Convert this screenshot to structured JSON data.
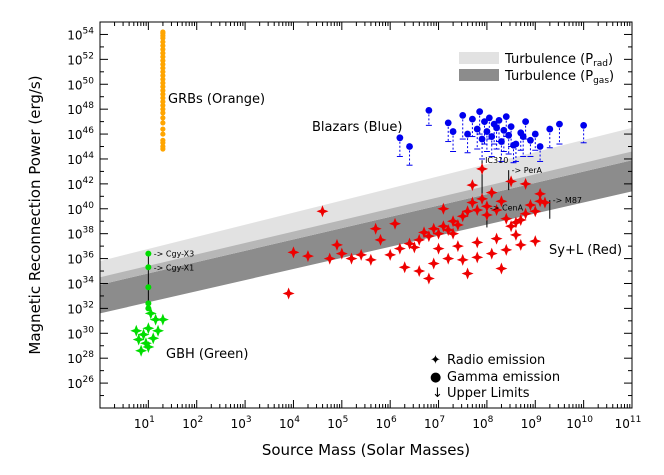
{
  "chart_data": {
    "type": "scatter",
    "xlabel": "Source Mass (Solar Masses)",
    "ylabel": "Magnetic Reconnection Power (erg/s)",
    "xscale": "log",
    "yscale": "log",
    "xlim_exp": [
      0,
      11
    ],
    "ylim_exp": [
      24,
      55
    ],
    "x_tick_exponents": [
      1,
      2,
      3,
      4,
      5,
      6,
      7,
      8,
      9,
      10,
      11
    ],
    "y_tick_exponents": [
      26,
      28,
      30,
      32,
      34,
      36,
      38,
      40,
      42,
      44,
      46,
      48,
      50,
      52,
      54
    ],
    "tick_base": "10",
    "bands": [
      {
        "name": "Turbulence (P_rad)",
        "label_main": "Turbulence (P",
        "label_sub": "rad",
        "label_close": ")",
        "color": "#e2e2e2",
        "log_lower_at_x0": 34.5,
        "log_lower_at_x11": 43.9,
        "log_upper_at_x0": 35.8,
        "log_upper_at_x11": 46.5
      },
      {
        "name": "Turbulence (P_gas)",
        "label_main": "Turbulence (P",
        "label_sub": "gas",
        "label_close": ")",
        "color": "#8c8c8c",
        "log_lower_at_x0": 31.6,
        "log_lower_at_x11": 41.4,
        "log_upper_at_x0": 33.9,
        "log_upper_at_x11": 43.9
      },
      {
        "name": "overlap",
        "color": "#b7b7b7",
        "log_lower_at_x0": 33.9,
        "log_lower_at_x11": 43.9,
        "log_upper_at_x0": 34.5,
        "log_upper_at_x11": 44.6
      }
    ],
    "series": [
      {
        "name": "GRBs",
        "color": "#ffa500",
        "marker": "circle",
        "log_mass": [
          1.3,
          1.3,
          1.3,
          1.3,
          1.3,
          1.3,
          1.3,
          1.3,
          1.3,
          1.3,
          1.3,
          1.3,
          1.3,
          1.3,
          1.3,
          1.3,
          1.3,
          1.3,
          1.3,
          1.3,
          1.3,
          1.3,
          1.3,
          1.3,
          1.3,
          1.3,
          1.3,
          1.3,
          1.3,
          1.3,
          1.3,
          1.3
        ],
        "log_power": [
          45.0,
          45.5,
          46.0,
          46.4,
          46.9,
          47.3,
          47.7,
          48.0,
          48.3,
          48.6,
          48.9,
          49.2,
          49.5,
          49.8,
          50.1,
          50.4,
          50.7,
          51.0,
          51.3,
          51.6,
          51.9,
          52.2,
          52.5,
          52.8,
          53.1,
          53.4,
          53.7,
          53.9,
          54.1,
          54.2,
          44.8,
          45.3
        ]
      },
      {
        "name": "Blazars",
        "color": "#0000ee",
        "marker": "circle",
        "log_mass": [
          6.4,
          6.8,
          7.2,
          7.5,
          7.6,
          7.7,
          7.8,
          7.85,
          7.9,
          7.95,
          8.0,
          8.05,
          8.1,
          8.15,
          8.2,
          8.25,
          8.3,
          8.35,
          8.4,
          8.45,
          8.5,
          8.6,
          8.7,
          8.8,
          8.9,
          9.0,
          9.1,
          9.3,
          9.5,
          10.0,
          6.2,
          7.3,
          8.55,
          8.75
        ],
        "log_power": [
          45.0,
          47.9,
          46.9,
          47.5,
          46.0,
          47.2,
          46.4,
          47.8,
          45.6,
          47.0,
          46.2,
          47.3,
          45.8,
          46.8,
          46.5,
          47.1,
          45.4,
          46.3,
          47.4,
          45.9,
          46.6,
          45.2,
          46.1,
          47.0,
          45.5,
          46.0,
          45.0,
          46.4,
          46.8,
          46.7,
          45.7,
          46.2,
          45.1,
          45.8
        ],
        "log_upper_limit": [
          43.5,
          46.7,
          45.4,
          45.6,
          44.5,
          45.8,
          44.8,
          46.0,
          44.0,
          45.2,
          44.6,
          45.6,
          44.2,
          45.2,
          44.8,
          45.4,
          43.8,
          44.6,
          45.8,
          44.4,
          45.0,
          43.8,
          44.7,
          45.6,
          44.2,
          44.7,
          43.8,
          44.9,
          45.2,
          45.3,
          44.2,
          44.6,
          43.7,
          44.2
        ]
      },
      {
        "name": "Sy+L",
        "color": "#ee0000",
        "marker": "star",
        "log_mass": [
          3.9,
          4.0,
          4.3,
          4.6,
          4.75,
          4.9,
          5.0,
          5.2,
          5.4,
          5.6,
          5.8,
          6.0,
          6.2,
          6.4,
          6.5,
          6.6,
          6.7,
          6.8,
          6.9,
          7.0,
          7.1,
          7.2,
          7.3,
          7.4,
          7.5,
          7.6,
          7.7,
          7.8,
          7.9,
          8.0,
          8.1,
          8.2,
          8.3,
          8.4,
          8.5,
          8.6,
          8.7,
          8.8,
          8.9,
          9.0,
          9.1,
          9.2,
          6.3,
          6.6,
          6.9,
          7.2,
          7.5,
          7.8,
          8.1,
          8.4,
          8.7,
          9.0,
          7.0,
          7.4,
          7.8,
          8.2,
          8.6,
          6.8,
          7.6,
          8.3,
          8.0,
          7.1,
          7.3,
          7.7,
          8.5,
          5.7,
          6.1,
          7.9,
          8.8,
          9.1
        ],
        "log_power": [
          33.2,
          36.5,
          36.2,
          39.8,
          36.0,
          37.1,
          36.4,
          36.0,
          36.3,
          35.9,
          37.5,
          36.3,
          36.8,
          37.2,
          36.9,
          37.5,
          38.1,
          37.8,
          38.4,
          38.0,
          38.6,
          38.3,
          39.0,
          38.7,
          39.4,
          39.8,
          40.5,
          39.9,
          40.8,
          40.2,
          41.3,
          39.9,
          40.6,
          39.2,
          38.6,
          38.9,
          39.1,
          39.6,
          40.3,
          39.8,
          40.6,
          40.5,
          35.3,
          35.0,
          35.6,
          36.0,
          35.9,
          36.1,
          36.4,
          36.7,
          37.1,
          37.4,
          36.8,
          37.0,
          37.3,
          37.6,
          37.9,
          34.4,
          34.8,
          35.2,
          39.5,
          40.0,
          38.0,
          41.9,
          42.2,
          38.4,
          38.8,
          43.2,
          42.0,
          41.2
        ]
      },
      {
        "name": "GBH",
        "color": "#00dd00",
        "marker": "mixed",
        "log_mass": [
          0.75,
          0.8,
          0.85,
          0.9,
          0.95,
          1.0,
          1.0,
          1.05,
          1.1,
          1.15,
          1.2,
          1.3,
          1.0,
          1.0,
          1.0,
          1.0,
          1.0
        ],
        "log_power": [
          30.2,
          29.5,
          28.6,
          29.9,
          29.2,
          30.4,
          28.9,
          31.6,
          29.6,
          31.1,
          30.2,
          31.1,
          36.4,
          35.3,
          33.7,
          32.4,
          32.0
        ]
      }
    ],
    "source_labels": [
      {
        "text": "-> Cgy-X3",
        "log_mass": 1.05,
        "log_power": 36.4
      },
      {
        "text": "-> Cgy-X1",
        "log_mass": 1.05,
        "log_power": 35.3
      },
      {
        "text": "IC310",
        "log_mass": 7.9,
        "log_power": 43.9
      },
      {
        "text": "-> PerA",
        "log_mass": 8.45,
        "log_power": 43.1
      },
      {
        "text": "-> CenA",
        "log_mass": 8.0,
        "log_power": 40.1
      },
      {
        "text": "-> M87",
        "log_mass": 9.3,
        "log_power": 40.7
      }
    ],
    "annotations": {
      "grb": "GRBs (Orange)",
      "blazar": "Blazars (Blue)",
      "syl": "Sy+L (Red)",
      "gbh": "GBH (Green)"
    },
    "legend": {
      "radio": "Radio emission",
      "gamma": "Gamma emission",
      "upper": "Upper Limits",
      "radio_symbol": "✦",
      "gamma_symbol": "●",
      "upper_symbol": "↓"
    }
  }
}
